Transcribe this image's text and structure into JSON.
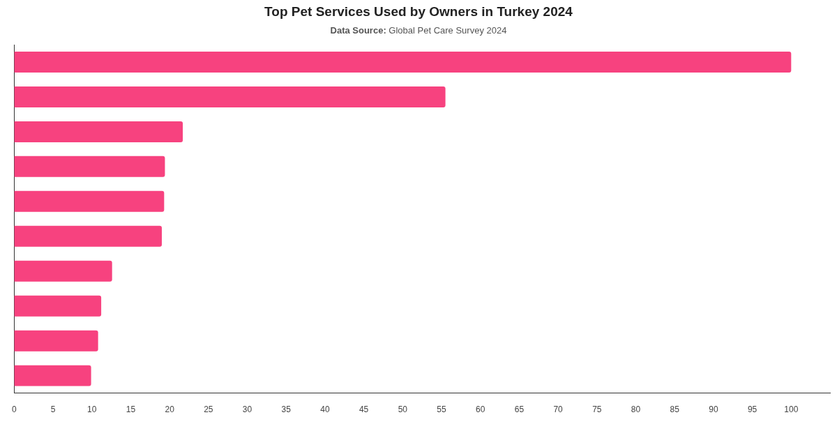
{
  "chart_data": {
    "type": "bar",
    "orientation": "horizontal",
    "title": "Top Pet Services Used by Owners in Turkey 2024",
    "subtitle": "Data Source: Global Pet Care Survey 2024",
    "categories": [
      null,
      null,
      null,
      null,
      null,
      null,
      null,
      null,
      null,
      null
    ],
    "values": [
      100,
      55.5,
      21.7,
      19.4,
      19.3,
      19.0,
      12.6,
      11.2,
      10.8,
      9.9
    ],
    "color": "#f7427f",
    "xlim": [
      0,
      105
    ],
    "xticks": [
      0,
      5,
      10,
      15,
      20,
      25,
      30,
      35,
      40,
      45,
      50,
      55,
      60,
      65,
      70,
      75,
      80,
      85,
      90,
      95,
      100
    ]
  }
}
